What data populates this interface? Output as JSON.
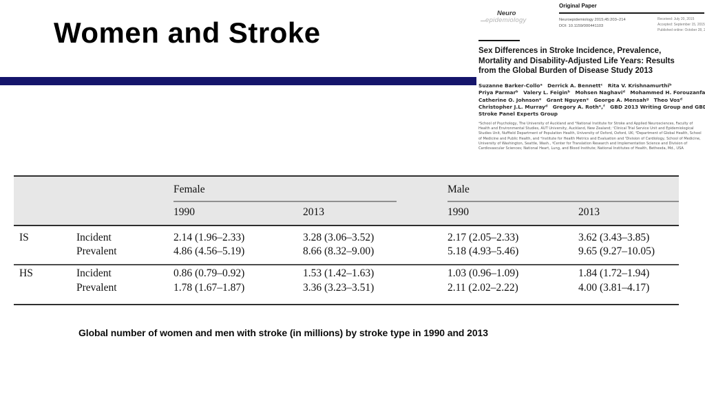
{
  "slide": {
    "title": "Women and Stroke",
    "caption": "Global number of women and men with stroke (in millions) by stroke type in 1990 and 2013",
    "colors": {
      "accent_bar": "#15156b",
      "table_header_bg": "#e7e7e7"
    }
  },
  "journal": {
    "brand_top": "Neuro",
    "brand_bottom": "epidemiology",
    "section_label": "Original Paper",
    "citation": "Neuroepidemiology 2015;45:203–214",
    "doi": "DOI: 10.1159/000441103",
    "dates": [
      "Received: July 20, 2015",
      "Accepted: September 15, 2015",
      "Published online: October 28, 2015"
    ],
    "article_title": "Sex Differences in Stroke Incidence, Prevalence, Mortality and Disability-Adjusted Life Years: Results from the Global Burden of Disease Study 2013",
    "author_lines": [
      "Suzanne Barker-Colloᵃ Derrick A. Bennettᶜ Rita V. Krishnamurthiᵇ",
      "Priya Parmarᵇ Valery L. Feiginᵇ Mohsen Naghaviᵈ Mohammed H. Forouzanfarᵉ",
      "Catherine O. Johnsonᵉ Grant Nguyenᵉ George A. Mensahᵍ Theo Vosᵈ",
      "Christopher J.L. Murrayᵈ Gregory A. Rothᵉ,ᶠ GBD 2013 Writing Group and GBD 2013",
      "Stroke Panel Experts Group"
    ],
    "affiliations": "ᵃSchool of Psychology, The University of Auckland and ᵇNational Institute for Stroke and Applied Neurosciences, Faculty of Health and Environmental Studies, AUT University, Auckland, New Zealand; ᶜClinical Trial Service Unit and Epidemiological Studies Unit, Nuffield Department of Population Health, University of Oxford, Oxford, UK; ᵈDepartment of Global Health, School of Medicine and Public Health, and ᵉInstitute for Health Metrics and Evaluation and ᶠDivision of Cardiology, School of Medicine, University of Washington, Seattle, Wash., ᵍCenter for Translation Research and Implementation Science and Division of Cardiovascular Sciences; National Heart, Lung, and Blood Institute; National Institutes of Health, Bethesda, Md., USA"
  },
  "table": {
    "groups": [
      "Female",
      "Male"
    ],
    "sub_headers": [
      "1990",
      "2013",
      "1990",
      "2013"
    ],
    "rows": [
      {
        "group": "IS",
        "measure": "Incident",
        "values": [
          "2.14 (1.96–2.33)",
          "3.28 (3.06–3.52)",
          "2.17 (2.05–2.33)",
          "3.62 (3.43–3.85)"
        ]
      },
      {
        "group": "",
        "measure": "Prevalent",
        "values": [
          "4.86 (4.56–5.19)",
          "8.66 (8.32–9.00)",
          "5.18 (4.93–5.46)",
          "9.65 (9.27–10.05)"
        ]
      },
      {
        "group": "HS",
        "measure": "Incident",
        "values": [
          "0.86 (0.79–0.92)",
          "1.53 (1.42–1.63)",
          "1.03 (0.96–1.09)",
          "1.84 (1.72–1.94)"
        ]
      },
      {
        "group": "",
        "measure": "Prevalent",
        "values": [
          "1.78 (1.67–1.87)",
          "3.36 (3.23–3.51)",
          "2.11 (2.02–2.22)",
          "4.00 (3.81–4.17)"
        ]
      }
    ]
  }
}
